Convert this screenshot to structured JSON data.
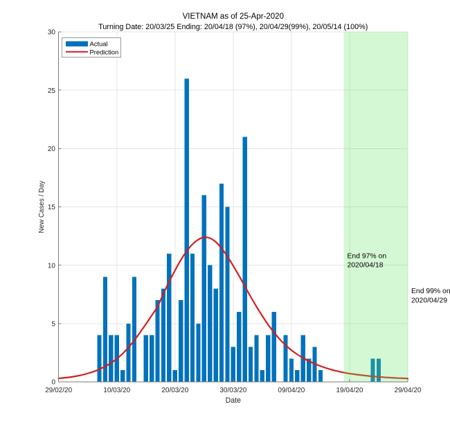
{
  "chart_data": {
    "type": "bar",
    "title": "VIETNAM as of 25-Apr-2020",
    "subtitle": "Turning Date: 20/03/25  Ending: 20/04/18 (97%), 20/04/29(99%), 20/05/14 (100%)",
    "xlabel": "Date",
    "ylabel": "New Cases / Day",
    "xlim": [
      "2020-02-29",
      "2020-04-29"
    ],
    "ylim": [
      0,
      30
    ],
    "grid": true,
    "yticks": [
      0,
      5,
      10,
      15,
      20,
      25,
      30
    ],
    "xticks": [
      {
        "date": "2020-02-29",
        "label": "29/02/20"
      },
      {
        "date": "2020-03-10",
        "label": "10/03/20"
      },
      {
        "date": "2020-03-20",
        "label": "20/03/20"
      },
      {
        "date": "2020-03-30",
        "label": "30/03/20"
      },
      {
        "date": "2020-04-09",
        "label": "09/04/20"
      },
      {
        "date": "2020-04-19",
        "label": "19/04/20"
      },
      {
        "date": "2020-04-29",
        "label": "29/04/20"
      }
    ],
    "legend": {
      "position": "top-left",
      "entries": [
        {
          "label": "Actual",
          "type": "bar"
        },
        {
          "label": "Prediction",
          "type": "line"
        }
      ]
    },
    "series": [
      {
        "name": "Actual",
        "type": "bar",
        "color": "#0072BD",
        "dates": [
          "2020-03-07",
          "2020-03-08",
          "2020-03-09",
          "2020-03-10",
          "2020-03-11",
          "2020-03-12",
          "2020-03-13",
          "2020-03-14",
          "2020-03-15",
          "2020-03-16",
          "2020-03-17",
          "2020-03-18",
          "2020-03-19",
          "2020-03-20",
          "2020-03-21",
          "2020-03-22",
          "2020-03-23",
          "2020-03-24",
          "2020-03-25",
          "2020-03-26",
          "2020-03-27",
          "2020-03-28",
          "2020-03-29",
          "2020-03-30",
          "2020-03-31",
          "2020-04-01",
          "2020-04-02",
          "2020-04-03",
          "2020-04-04",
          "2020-04-05",
          "2020-04-06",
          "2020-04-07",
          "2020-04-08",
          "2020-04-09",
          "2020-04-10",
          "2020-04-11",
          "2020-04-12",
          "2020-04-13",
          "2020-04-14",
          "2020-04-15",
          "2020-04-16",
          "2020-04-17",
          "2020-04-18",
          "2020-04-19",
          "2020-04-20",
          "2020-04-21",
          "2020-04-22",
          "2020-04-23",
          "2020-04-24"
        ],
        "values": [
          4,
          9,
          4,
          4,
          1,
          5,
          9,
          0,
          4,
          4,
          7,
          8,
          11,
          1,
          7,
          26,
          11,
          5,
          16,
          10,
          8,
          17,
          15,
          3,
          6,
          21,
          3,
          4,
          1,
          4,
          6,
          0,
          4,
          2,
          1,
          4,
          2,
          3,
          1,
          0,
          0,
          0,
          0,
          0,
          0,
          0,
          0,
          2,
          2
        ]
      },
      {
        "name": "Prediction",
        "type": "line",
        "color": "#D21E1E",
        "start_date": "2020-02-29",
        "step_days": 1,
        "values": [
          0.3,
          0.35,
          0.41,
          0.49,
          0.59,
          0.72,
          0.88,
          1.08,
          1.32,
          1.62,
          1.98,
          2.42,
          2.95,
          3.56,
          4.25,
          4.95,
          5.7,
          6.45,
          7.55,
          8.6,
          9.55,
          10.45,
          11.2,
          11.8,
          12.2,
          12.4,
          12.32,
          12.0,
          11.45,
          10.75,
          9.95,
          9.1,
          8.2,
          7.3,
          6.45,
          5.65,
          4.9,
          4.25,
          3.65,
          3.15,
          2.72,
          2.36,
          2.05,
          1.78,
          1.55,
          1.35,
          1.18,
          1.03,
          0.91,
          0.8,
          0.71,
          0.64,
          0.58,
          0.52,
          0.47,
          0.43,
          0.39,
          0.36,
          0.33,
          0.31,
          0.29
        ]
      }
    ],
    "shaded_region": {
      "from": "2020-04-18",
      "to": "2020-04-29",
      "color": "#64E664"
    },
    "annotations": [
      {
        "date": "2020-04-18",
        "lines": [
          "End 97% on",
          "2020/04/18"
        ]
      },
      {
        "date": "2020-04-29",
        "lines": [
          "End 99% on",
          "2020/04/29"
        ]
      }
    ]
  }
}
